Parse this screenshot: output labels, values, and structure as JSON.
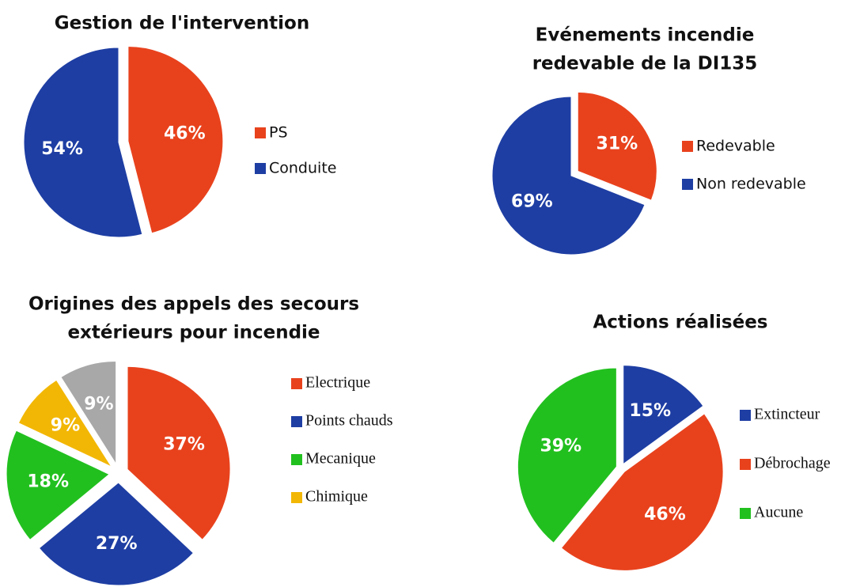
{
  "chart_data": [
    {
      "type": "pie",
      "title": [
        "Gestion de l'intervention"
      ],
      "categories": [
        "PS",
        "Conduite"
      ],
      "values": [
        46,
        54
      ],
      "value_labels": [
        "46%",
        "54%"
      ],
      "colors": [
        "#e8421d",
        "#1e3ea3"
      ],
      "legend": "right"
    },
    {
      "type": "pie",
      "title": [
        "Evénements incendie",
        "redevable de la DI135"
      ],
      "categories": [
        "Redevable",
        "Non redevable"
      ],
      "values": [
        31,
        69
      ],
      "value_labels": [
        "31%",
        "69%"
      ],
      "colors": [
        "#e8421d",
        "#1e3ea3"
      ],
      "legend": "right"
    },
    {
      "type": "pie",
      "title": [
        "Origines des appels des secours",
        "extérieurs pour incendie"
      ],
      "categories": [
        "Electrique",
        "Points chauds",
        "Mecanique",
        "Chimique",
        null
      ],
      "values": [
        37,
        27,
        18,
        9,
        9
      ],
      "value_labels": [
        "37%",
        "27%",
        "18%",
        "9%",
        "9%"
      ],
      "colors": [
        "#e8421d",
        "#1e3ea3",
        "#22c01f",
        "#f2b705",
        "#a8a8a8"
      ],
      "legend": "right"
    },
    {
      "type": "pie",
      "title": [
        "Actions réalisées"
      ],
      "categories": [
        "Extincteur",
        "Débrochage",
        "Aucune"
      ],
      "values": [
        15,
        46,
        39
      ],
      "value_labels": [
        "15%",
        "46%",
        "39%"
      ],
      "colors": [
        "#1e3ea3",
        "#e8421d",
        "#22c01f"
      ],
      "legend": "right"
    }
  ]
}
